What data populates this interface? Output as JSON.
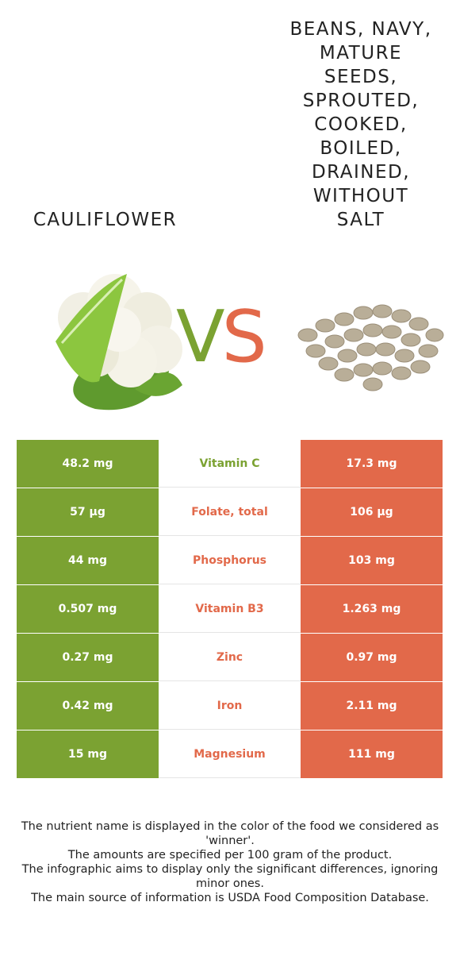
{
  "left_food": {
    "title": "CAULIFLOWER",
    "color": "#7ba232",
    "image_icon": "cauliflower-image"
  },
  "right_food": {
    "title": "BEANS, NAVY, MATURE SEEDS, SPROUTED, COOKED, BOILED, DRAINED, WITHOUT SALT",
    "title_lines": [
      "BEANS, NAVY,",
      "MATURE",
      "SEEDS,",
      "SPROUTED,",
      "COOKED,",
      "BOILED,",
      "DRAINED,",
      "WITHOUT",
      "SALT"
    ],
    "color": "#e2694a",
    "image_icon": "navy-beans-image"
  },
  "vs": {
    "v": "V",
    "s": "S"
  },
  "nutrients": [
    {
      "name": "Vitamin C",
      "left": "48.2 mg",
      "right": "17.3 mg",
      "winner": "left"
    },
    {
      "name": "Folate, total",
      "left": "57 µg",
      "right": "106 µg",
      "winner": "right"
    },
    {
      "name": "Phosphorus",
      "left": "44 mg",
      "right": "103 mg",
      "winner": "right"
    },
    {
      "name": "Vitamin B3",
      "left": "0.507 mg",
      "right": "1.263 mg",
      "winner": "right"
    },
    {
      "name": "Zinc",
      "left": "0.27 mg",
      "right": "0.97 mg",
      "winner": "right"
    },
    {
      "name": "Iron",
      "left": "0.42 mg",
      "right": "2.11 mg",
      "winner": "right"
    },
    {
      "name": "Magnesium",
      "left": "15 mg",
      "right": "111 mg",
      "winner": "right"
    }
  ],
  "footer": [
    "The nutrient name is displayed in the color of the food we considered as 'winner'.",
    "The amounts are specified per 100 gram of the product.",
    "The infographic aims to display only the significant differences, ignoring minor ones.",
    "The main source of information is USDA Food Composition Database."
  ]
}
